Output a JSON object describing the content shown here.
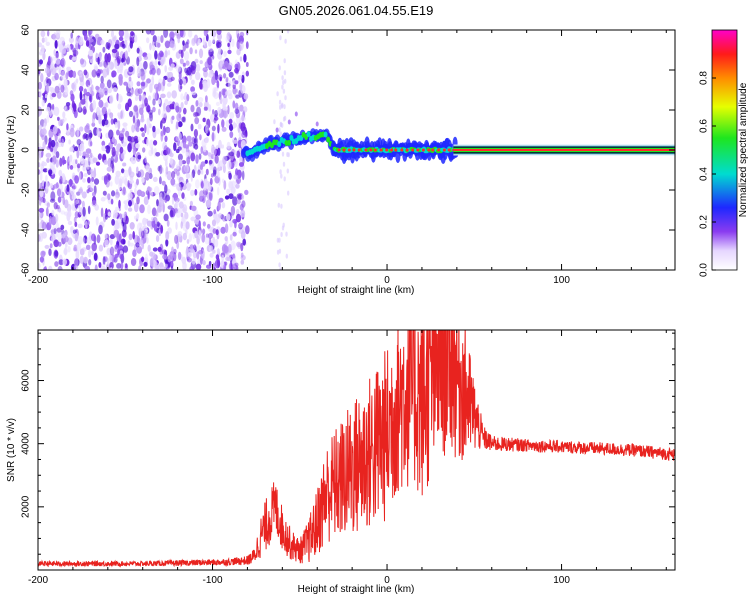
{
  "title": "GN05.2026.061.04.55.E19",
  "chart_data": [
    {
      "type": "heatmap",
      "xlabel": "Height of straight line (km)",
      "ylabel": "Frequency (Hz)",
      "xlim": [
        -200,
        165
      ],
      "ylim": [
        -60,
        60
      ],
      "x_ticks": [
        -200,
        -100,
        0,
        100
      ],
      "y_ticks": [
        60,
        40,
        20,
        0,
        -20,
        -40,
        -60
      ],
      "colorbar": {
        "label": "Normalized spectral amplitude",
        "range": [
          0,
          1
        ],
        "ticks": [
          "0.0",
          "0.2",
          "0.4",
          "0.6",
          "0.8"
        ]
      },
      "regions": [
        {
          "x": [
            -200,
            -80
          ],
          "description": "scattered noise across all frequencies, low amplitude"
        },
        {
          "x": [
            -80,
            -30
          ],
          "description": "rising trail from about 0 Hz to about 8 Hz"
        },
        {
          "x": [
            -30,
            40
          ],
          "description": "band near 0 Hz with moderate amplitude"
        },
        {
          "x": [
            40,
            165
          ],
          "description": "narrow band at 0 Hz, maximum amplitude"
        }
      ],
      "trail": [
        {
          "x": -80,
          "y": -3
        },
        {
          "x": -75,
          "y": 0
        },
        {
          "x": -70,
          "y": 2
        },
        {
          "x": -65,
          "y": 3
        },
        {
          "x": -60,
          "y": 4
        },
        {
          "x": -55,
          "y": 5
        },
        {
          "x": -50,
          "y": 6
        },
        {
          "x": -45,
          "y": 7
        },
        {
          "x": -40,
          "y": 7
        },
        {
          "x": -35,
          "y": 8
        },
        {
          "x": -30,
          "y": 0
        },
        {
          "x": 0,
          "y": 0
        },
        {
          "x": 40,
          "y": 0
        }
      ]
    },
    {
      "type": "line",
      "xlabel": "Height of straight line (km)",
      "ylabel": "SNR (10 * v/v)",
      "xlim": [
        -200,
        165
      ],
      "ylim": [
        0,
        7600
      ],
      "x_ticks": [
        -200,
        -100,
        0,
        100
      ],
      "y_ticks": [
        2000,
        4000,
        6000
      ],
      "color": "#e8231f",
      "series": [
        {
          "x": [
            -200,
            -180,
            -160,
            -140,
            -120,
            -100,
            -90,
            -80,
            -76,
            -72,
            -68,
            -64,
            -60,
            -55,
            -50,
            -45,
            -40,
            -35,
            -30,
            -25,
            -20,
            -15,
            -10,
            -5,
            0,
            5,
            10,
            15,
            20,
            25,
            30,
            35,
            40,
            45,
            50,
            55,
            60,
            80,
            100,
            120,
            140,
            165
          ],
          "y": [
            200,
            200,
            200,
            200,
            220,
            240,
            260,
            300,
            450,
            1100,
            1600,
            2000,
            1300,
            800,
            600,
            900,
            1500,
            2400,
            2700,
            2900,
            3200,
            3400,
            3700,
            4000,
            4300,
            5200,
            5600,
            5800,
            5300,
            6000,
            6600,
            7000,
            6200,
            5600,
            4900,
            4200,
            4000,
            3950,
            3900,
            3850,
            3800,
            3650
          ],
          "spread": [
            80,
            80,
            80,
            80,
            90,
            100,
            110,
            150,
            250,
            700,
            900,
            900,
            700,
            500,
            400,
            700,
            1100,
            1600,
            1800,
            2000,
            2200,
            2400,
            2500,
            2700,
            2800,
            3000,
            3100,
            3200,
            3200,
            3300,
            3400,
            3200,
            2800,
            2200,
            1200,
            400,
            250,
            200,
            200,
            200,
            200,
            200
          ]
        }
      ]
    }
  ]
}
